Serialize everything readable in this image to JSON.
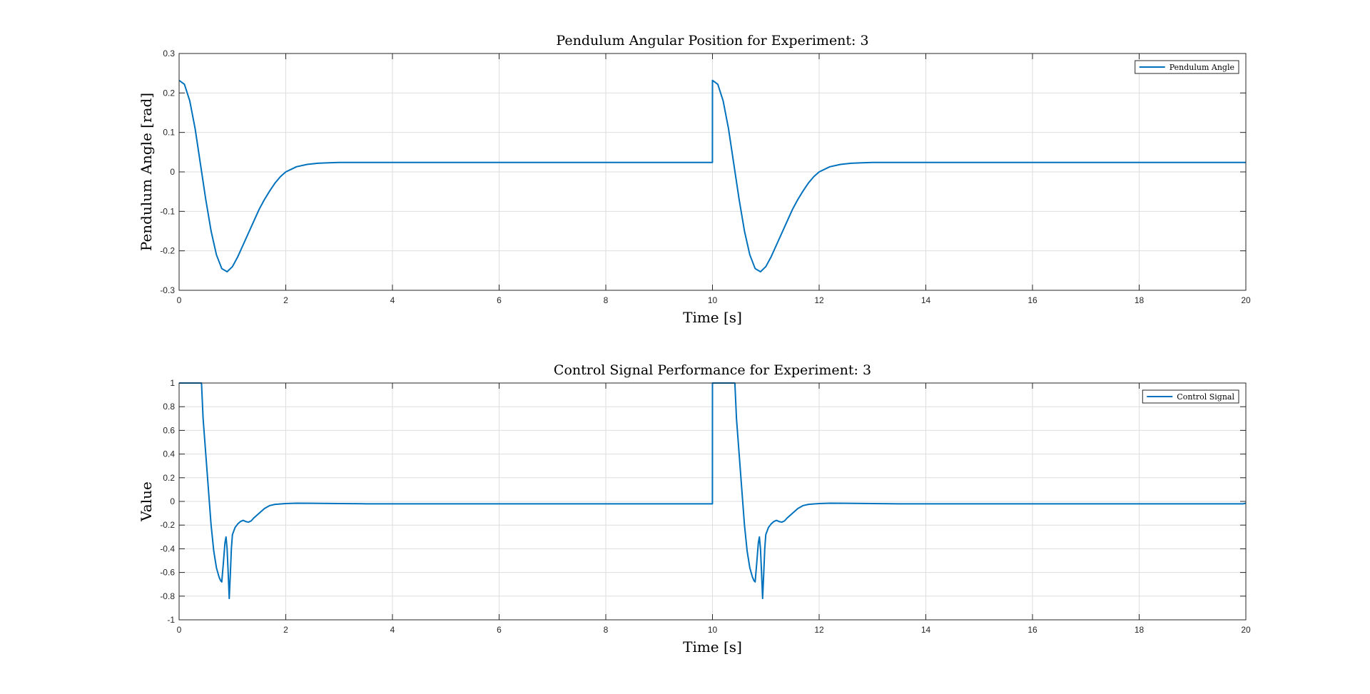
{
  "chart_data": [
    {
      "type": "line",
      "title": "Pendulum Angular Position for Experiment: 3",
      "xlabel": "Time [s]",
      "ylabel": "Pendulum Angle [rad]",
      "xlim": [
        0,
        20
      ],
      "ylim": [
        -0.3,
        0.3
      ],
      "xticks": [
        0,
        2,
        4,
        6,
        8,
        10,
        12,
        14,
        16,
        18,
        20
      ],
      "yticks": [
        -0.3,
        -0.2,
        -0.1,
        0,
        0.1,
        0.2,
        0.3
      ],
      "grid": true,
      "legend_position": "top-right",
      "series": [
        {
          "name": "Pendulum Angle",
          "color": "#0072BD",
          "x": [
            0,
            0.1,
            0.2,
            0.3,
            0.4,
            0.5,
            0.6,
            0.7,
            0.8,
            0.9,
            1.0,
            1.1,
            1.2,
            1.3,
            1.4,
            1.5,
            1.6,
            1.7,
            1.8,
            1.9,
            2.0,
            2.2,
            2.4,
            2.6,
            2.8,
            3.0,
            3.5,
            4.0,
            9.999,
            10.0,
            10.1,
            10.2,
            10.3,
            10.4,
            10.5,
            10.6,
            10.7,
            10.8,
            10.9,
            11.0,
            11.1,
            11.2,
            11.3,
            11.4,
            11.5,
            11.6,
            11.7,
            11.8,
            11.9,
            12.0,
            12.2,
            12.4,
            12.6,
            12.8,
            13.0,
            13.5,
            14.0,
            20.0
          ],
          "y": [
            0.232,
            0.222,
            0.18,
            0.11,
            0.02,
            -0.07,
            -0.15,
            -0.21,
            -0.245,
            -0.253,
            -0.24,
            -0.215,
            -0.185,
            -0.155,
            -0.125,
            -0.095,
            -0.07,
            -0.048,
            -0.028,
            -0.012,
            0.0,
            0.013,
            0.019,
            0.022,
            0.023,
            0.024,
            0.024,
            0.024,
            0.024,
            0.232,
            0.222,
            0.18,
            0.11,
            0.02,
            -0.07,
            -0.15,
            -0.21,
            -0.245,
            -0.253,
            -0.24,
            -0.215,
            -0.185,
            -0.155,
            -0.125,
            -0.095,
            -0.07,
            -0.048,
            -0.028,
            -0.012,
            0.0,
            0.013,
            0.019,
            0.022,
            0.023,
            0.024,
            0.024,
            0.024,
            0.024
          ]
        }
      ]
    },
    {
      "type": "line",
      "title": "Control Signal Performance for Experiment: 3",
      "xlabel": "Time [s]",
      "ylabel": "Value",
      "xlim": [
        0,
        20
      ],
      "ylim": [
        -1,
        1
      ],
      "xticks": [
        0,
        2,
        4,
        6,
        8,
        10,
        12,
        14,
        16,
        18,
        20
      ],
      "yticks": [
        -1,
        -0.8,
        -0.6,
        -0.4,
        -0.2,
        0,
        0.2,
        0.4,
        0.6,
        0.8,
        1
      ],
      "grid": true,
      "legend_position": "top-right",
      "series": [
        {
          "name": "Control Signal",
          "color": "#0072BD",
          "x": [
            0,
            0.42,
            0.45,
            0.5,
            0.55,
            0.6,
            0.65,
            0.7,
            0.75,
            0.78,
            0.8,
            0.83,
            0.86,
            0.88,
            0.9,
            0.92,
            0.94,
            0.96,
            0.98,
            1.0,
            1.05,
            1.1,
            1.15,
            1.2,
            1.25,
            1.3,
            1.35,
            1.4,
            1.5,
            1.6,
            1.7,
            1.8,
            2.0,
            2.2,
            2.5,
            3.0,
            3.5,
            4.0,
            9.999,
            10.0,
            10.42,
            10.45,
            10.5,
            10.55,
            10.6,
            10.65,
            10.7,
            10.75,
            10.78,
            10.8,
            10.83,
            10.86,
            10.88,
            10.9,
            10.92,
            10.94,
            10.96,
            10.98,
            11.0,
            11.05,
            11.1,
            11.15,
            11.2,
            11.25,
            11.3,
            11.35,
            11.4,
            11.5,
            11.6,
            11.7,
            11.8,
            12.0,
            12.2,
            12.5,
            13.0,
            13.5,
            14.0,
            19.95,
            20.0
          ],
          "y": [
            1.0,
            1.0,
            0.7,
            0.4,
            0.1,
            -0.2,
            -0.42,
            -0.56,
            -0.64,
            -0.67,
            -0.68,
            -0.52,
            -0.35,
            -0.3,
            -0.4,
            -0.6,
            -0.82,
            -0.62,
            -0.4,
            -0.28,
            -0.22,
            -0.19,
            -0.17,
            -0.16,
            -0.17,
            -0.175,
            -0.165,
            -0.14,
            -0.1,
            -0.06,
            -0.035,
            -0.025,
            -0.018,
            -0.015,
            -0.016,
            -0.018,
            -0.02,
            -0.02,
            -0.02,
            1.0,
            1.0,
            0.7,
            0.4,
            0.1,
            -0.2,
            -0.42,
            -0.56,
            -0.64,
            -0.67,
            -0.68,
            -0.52,
            -0.35,
            -0.3,
            -0.4,
            -0.6,
            -0.82,
            -0.62,
            -0.4,
            -0.28,
            -0.22,
            -0.19,
            -0.17,
            -0.16,
            -0.17,
            -0.175,
            -0.165,
            -0.14,
            -0.1,
            -0.06,
            -0.035,
            -0.025,
            -0.018,
            -0.015,
            -0.016,
            -0.018,
            -0.02,
            -0.02,
            -0.02,
            -0.015
          ]
        }
      ]
    }
  ]
}
